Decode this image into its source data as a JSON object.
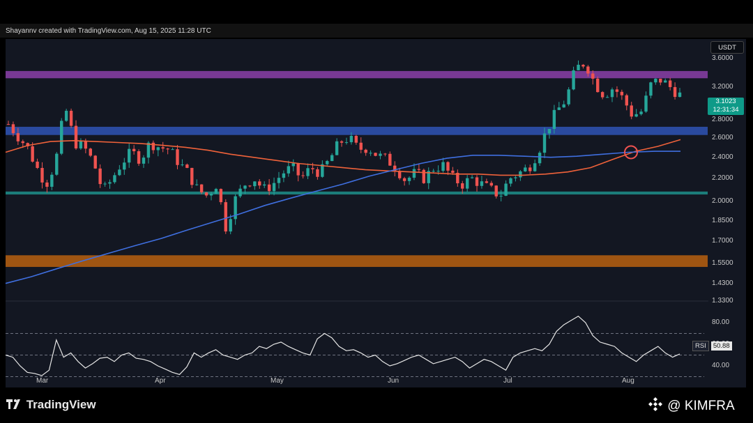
{
  "caption": "Shayannv created with TradingView.com, Aug 15, 2025 11:28 UTC",
  "currency": "USDT",
  "price_box": {
    "price": "3.1023",
    "countdown": "12:31:34"
  },
  "rsi_label": {
    "name": "RSI",
    "value": "50.88"
  },
  "branding": {
    "logo": "TradingView",
    "watermark": "@ KIMFRA"
  },
  "colors": {
    "up": "#26a69a",
    "down": "#ef5350",
    "ma_fast": "#f0623a",
    "ma_slow": "#3f6fe0",
    "rsi_line": "#e6e6e6"
  },
  "chart_data": [
    {
      "type": "candlestick",
      "x_ticks": [
        "Mar",
        "Apr",
        "May",
        "Jun",
        "Jul",
        "Aug"
      ],
      "y_scale": "log",
      "y_ticks": [
        "3.6000",
        "3.2000",
        "2.8000",
        "2.6000",
        "2.4000",
        "2.2000",
        "2.0000",
        "1.8500",
        "1.7000",
        "1.5500",
        "1.4300",
        "1.3300"
      ],
      "ylim": [
        1.33,
        3.9
      ],
      "close_path": [
        2.75,
        2.62,
        2.5,
        2.3,
        2.15,
        2.35,
        2.95,
        2.55,
        2.5,
        2.35,
        2.08,
        2.2,
        2.35,
        2.45,
        2.38,
        2.55,
        2.5,
        2.48,
        2.35,
        2.25,
        2.1,
        2.05,
        2.15,
        1.8,
        2.02,
        2.15,
        2.2,
        2.1,
        2.15,
        2.25,
        2.3,
        2.2,
        2.3,
        2.25,
        2.38,
        2.55,
        2.6,
        2.48,
        2.5,
        2.42,
        2.38,
        2.3,
        2.18,
        2.25,
        2.2,
        2.3,
        2.32,
        2.2,
        2.15,
        2.2,
        2.15,
        2.1,
        2.05,
        2.2,
        2.25,
        2.3,
        2.45,
        2.7,
        2.9,
        3.05,
        3.45,
        3.55,
        3.25,
        3.1,
        3.2,
        3.05,
        2.85,
        2.9,
        3.25,
        3.3,
        3.2,
        3.1
      ],
      "ma_fast_path": [
        2.45,
        2.52,
        2.56,
        2.57,
        2.56,
        2.55,
        2.54,
        2.52,
        2.5,
        2.47,
        2.43,
        2.4,
        2.37,
        2.34,
        2.32,
        2.3,
        2.28,
        2.27,
        2.26,
        2.25,
        2.24,
        2.24,
        2.23,
        2.23,
        2.24,
        2.26,
        2.3,
        2.38,
        2.46,
        2.51,
        2.58
      ],
      "ma_slow_path": [
        1.43,
        1.47,
        1.52,
        1.57,
        1.62,
        1.67,
        1.72,
        1.78,
        1.84,
        1.9,
        1.97,
        2.03,
        2.09,
        2.15,
        2.22,
        2.28,
        2.34,
        2.39,
        2.42,
        2.42,
        2.41,
        2.4,
        2.41,
        2.43,
        2.45,
        2.46,
        2.46
      ],
      "zones": [
        {
          "low": 3.32,
          "high": 3.42,
          "color": "#8b3fa8"
        },
        {
          "low": 2.63,
          "high": 2.72,
          "color": "#2f53b5"
        },
        {
          "low": 2.06,
          "high": 2.085,
          "color": "#1e8f8a"
        },
        {
          "low": 1.53,
          "high": 1.605,
          "color": "#b8600f"
        }
      ]
    },
    {
      "type": "line",
      "y_ticks": [
        "80.00",
        "60.00",
        "40.00"
      ],
      "ylim": [
        20,
        100
      ],
      "guides": [
        70,
        50,
        30
      ],
      "values": [
        50,
        48,
        40,
        34,
        33,
        31,
        36,
        64,
        48,
        52,
        44,
        38,
        42,
        47,
        48,
        44,
        50,
        52,
        47,
        46,
        44,
        40,
        37,
        34,
        32,
        39,
        52,
        48,
        52,
        55,
        50,
        48,
        46,
        50,
        52,
        58,
        56,
        60,
        62,
        58,
        55,
        52,
        50,
        65,
        70,
        66,
        58,
        54,
        55,
        52,
        48,
        50,
        44,
        40,
        42,
        45,
        48,
        50,
        46,
        42,
        44,
        46,
        48,
        44,
        38,
        42,
        46,
        44,
        40,
        36,
        48,
        52,
        54,
        56,
        54,
        60,
        72,
        78,
        82,
        86,
        80,
        68,
        62,
        60,
        58,
        52,
        48,
        44,
        50,
        54,
        58,
        52,
        48,
        51
      ]
    }
  ]
}
